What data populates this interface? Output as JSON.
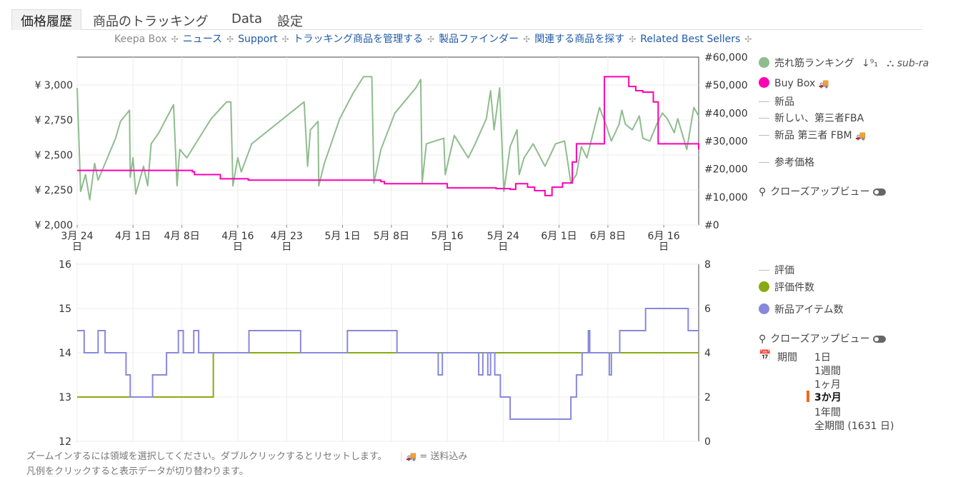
{
  "tabs": [
    "価格履歴",
    "商品のトラッキング",
    "Data",
    "設定"
  ],
  "links": [
    "ニュース",
    "Support",
    "トラッキング商品を管理する",
    "製品ファインダー",
    "関連する商品を探す",
    "Related Best Sellers"
  ],
  "links_prefix": "Keepa Box",
  "link_separator": "✣",
  "top_legend": {
    "sales_rank": "売れ筋ランキング",
    "sort_icon": "↓⁹₁",
    "sub_rank": "sub-ra",
    "buy_box": "Buy Box",
    "new": "新品",
    "new_3p_fba": "新しい、第三者FBA",
    "new_3p_fbm": "新品 第三者 FBM",
    "list_price": "参考価格",
    "closeup": "クローズアップビュー",
    "truck_icon": "🚚"
  },
  "bottom_legend": {
    "rating": "評価",
    "review_count": "評価件数",
    "new_offer_count": "新品アイテム数",
    "closeup": "クローズアップビュー",
    "period_label": "期間",
    "period_options": [
      "1日",
      "1週間",
      "1ヶ月",
      "3か月",
      "1年間",
      "全期間 (1631 日)"
    ],
    "period_selected": "3か月"
  },
  "footnotes": {
    "line1": "ズームインするには領域を選択してください。ダブルクリックするとリセットします。",
    "shipping_note": "= 送料込み",
    "line2": "凡例をクリックすると表示データが切り替わります。"
  },
  "colors": {
    "sales_rank": "#8fbc8f",
    "buy_box": "#ff00b4",
    "rating_count": "#88aa11",
    "new_offer_count": "#8888dd",
    "accent": "#f26a1b",
    "link": "#1f5aa5"
  },
  "chart_data": [
    {
      "type": "line",
      "x_tick_labels": [
        "3月 24 日",
        "4月 1日",
        "4月 8日",
        "4月 16 日",
        "4月 23 日",
        "5月 1日",
        "5月 8日",
        "5月 16 日",
        "5月 24 日",
        "6月 1日",
        "6月 8日",
        "6月 16 日"
      ],
      "y_left": {
        "tick_labels": [
          "¥ 2,000",
          "¥ 2,250",
          "¥ 2,500",
          "¥ 2,750",
          "¥ 3,000"
        ],
        "range": [
          2000,
          3200
        ]
      },
      "y_right": {
        "tick_labels": [
          "#0",
          "#10,000",
          "#20,000",
          "#30,000",
          "#40,000",
          "#50,000",
          "#60,000"
        ],
        "range": [
          0,
          60000
        ]
      },
      "x_range_days": [
        0,
        89
      ],
      "series": [
        {
          "name": "売れ筋ランキング",
          "axis": "right",
          "points": [
            [
              0,
              49000
            ],
            [
              0.5,
              12000
            ],
            [
              1.2,
              18000
            ],
            [
              1.8,
              9000
            ],
            [
              2.5,
              22000
            ],
            [
              3,
              16000
            ],
            [
              5.5,
              31000
            ],
            [
              6.2,
              37000
            ],
            [
              7.5,
              41000
            ],
            [
              7.6,
              17000
            ],
            [
              8,
              24000
            ],
            [
              8.4,
              11000
            ],
            [
              9.5,
              21000
            ],
            [
              10.1,
              14000
            ],
            [
              10.6,
              29000
            ],
            [
              11.7,
              33000
            ],
            [
              13.8,
              43000
            ],
            [
              14.3,
              14000
            ],
            [
              14.7,
              27000
            ],
            [
              15.7,
              24000
            ],
            [
              17.2,
              30000
            ],
            [
              19.2,
              38000
            ],
            [
              21.4,
              44000
            ],
            [
              22,
              44000
            ],
            [
              22.3,
              14000
            ],
            [
              23,
              24000
            ],
            [
              23.5,
              19000
            ],
            [
              25,
              29000
            ],
            [
              28,
              35000
            ],
            [
              32.5,
              44000
            ],
            [
              33,
              21000
            ],
            [
              33.4,
              34000
            ],
            [
              34.5,
              37000
            ],
            [
              34.6,
              14000
            ],
            [
              35.4,
              22000
            ],
            [
              37.6,
              38000
            ],
            [
              39.5,
              47000
            ],
            [
              41,
              53000
            ],
            [
              42.2,
              53000
            ],
            [
              42.5,
              15000
            ],
            [
              43.5,
              27000
            ],
            [
              45.5,
              40000
            ],
            [
              48.5,
              49000
            ],
            [
              49.2,
              52000
            ],
            [
              49.4,
              15000
            ],
            [
              50,
              29000
            ],
            [
              52.5,
              31000
            ],
            [
              52.7,
              18000
            ],
            [
              54,
              32000
            ],
            [
              56,
              24000
            ],
            [
              57,
              29000
            ],
            [
              58.6,
              38000
            ],
            [
              59.2,
              48000
            ],
            [
              59.7,
              34000
            ],
            [
              60.5,
              49000
            ],
            [
              61.1,
              12000
            ],
            [
              62,
              28000
            ],
            [
              63,
              34000
            ],
            [
              63.3,
              18000
            ],
            [
              64,
              24000
            ],
            [
              65.3,
              29000
            ],
            [
              67,
              21000
            ],
            [
              68.5,
              29000
            ],
            [
              69.8,
              30000
            ],
            [
              70.7,
              15000
            ],
            [
              71.5,
              18000
            ],
            [
              72.2,
              28000
            ],
            [
              73,
              24000
            ],
            [
              74.2,
              36000
            ],
            [
              74.8,
              42000
            ],
            [
              75.7,
              36000
            ],
            [
              76.5,
              30000
            ],
            [
              77.6,
              36000
            ],
            [
              78,
              41000
            ],
            [
              78.5,
              36000
            ],
            [
              79.5,
              34000
            ],
            [
              80.5,
              39000
            ],
            [
              81,
              31000
            ],
            [
              82,
              30000
            ],
            [
              83,
              36000
            ],
            [
              83.8,
              40000
            ],
            [
              84.5,
              38000
            ],
            [
              85.5,
              33000
            ],
            [
              86,
              38000
            ],
            [
              87.3,
              27000
            ],
            [
              88.3,
              42000
            ],
            [
              89,
              39000
            ]
          ]
        },
        {
          "name": "Buy Box",
          "axis": "left",
          "points": [
            [
              0,
              2390
            ],
            [
              7.5,
              2390
            ],
            [
              10.5,
              2390
            ],
            [
              16.5,
              2380
            ],
            [
              16.8,
              2360
            ],
            [
              20.5,
              2330
            ],
            [
              23.5,
              2330
            ],
            [
              24.5,
              2320
            ],
            [
              38,
              2320
            ],
            [
              40,
              2320
            ],
            [
              43.5,
              2310
            ],
            [
              44,
              2295
            ],
            [
              51,
              2295
            ],
            [
              53,
              2265
            ],
            [
              58,
              2265
            ],
            [
              60,
              2260
            ],
            [
              62,
              2255
            ],
            [
              62.8,
              2295
            ],
            [
              64.5,
              2270
            ],
            [
              65.5,
              2245
            ],
            [
              67,
              2210
            ],
            [
              68,
              2270
            ],
            [
              69.5,
              2300
            ],
            [
              70.5,
              2300
            ],
            [
              70.9,
              2450
            ],
            [
              71.5,
              2580
            ],
            [
              72,
              2580
            ],
            [
              73.5,
              2580
            ],
            [
              73.8,
              2580
            ],
            [
              75.5,
              3060
            ],
            [
              78,
              3060
            ],
            [
              79,
              2990
            ],
            [
              80,
              2960
            ],
            [
              81,
              2950
            ],
            [
              82.5,
              2880
            ],
            [
              83,
              2880
            ],
            [
              83.2,
              2580
            ],
            [
              90,
              2580
            ],
            [
              92,
              2560
            ],
            [
              94.5,
              2560
            ],
            [
              95,
              2540
            ],
            [
              96,
              2540
            ]
          ]
        }
      ]
    },
    {
      "type": "line",
      "x_range_days": [
        0,
        89
      ],
      "y_left": {
        "tick_labels": [
          "12",
          "13",
          "14",
          "15",
          "16"
        ],
        "range": [
          12,
          16
        ]
      },
      "y_right": {
        "tick_labels": [
          "0",
          "2",
          "4",
          "6",
          "8"
        ],
        "range": [
          0,
          8
        ]
      },
      "series": [
        {
          "name": "評価件数",
          "axis": "left",
          "points": [
            [
              0,
              13
            ],
            [
              19.5,
              13
            ],
            [
              19.5,
              14
            ],
            [
              89,
              14
            ]
          ]
        },
        {
          "name": "新品アイテム数",
          "axis": "right",
          "points": [
            [
              0,
              5
            ],
            [
              1,
              5
            ],
            [
              1,
              4
            ],
            [
              3,
              4
            ],
            [
              3,
              5
            ],
            [
              4,
              5
            ],
            [
              4,
              4
            ],
            [
              7,
              4
            ],
            [
              7,
              3
            ],
            [
              7.6,
              3
            ],
            [
              7.6,
              2
            ],
            [
              10.8,
              2
            ],
            [
              10.8,
              3
            ],
            [
              12.8,
              3
            ],
            [
              12.8,
              4
            ],
            [
              14.5,
              4
            ],
            [
              14.5,
              5
            ],
            [
              15.2,
              5
            ],
            [
              15.2,
              4
            ],
            [
              16.7,
              4
            ],
            [
              16.7,
              5
            ],
            [
              17.4,
              5
            ],
            [
              17.4,
              4
            ],
            [
              24.6,
              4
            ],
            [
              24.6,
              5
            ],
            [
              32,
              5
            ],
            [
              32,
              4
            ],
            [
              38.7,
              4
            ],
            [
              38.7,
              5
            ],
            [
              45.8,
              5
            ],
            [
              45.8,
              4
            ],
            [
              51.7,
              4
            ],
            [
              51.7,
              3
            ],
            [
              52.3,
              3
            ],
            [
              52.3,
              4
            ],
            [
              57.5,
              4
            ],
            [
              57.5,
              3
            ],
            [
              58.1,
              3
            ],
            [
              58.1,
              4
            ],
            [
              58.8,
              4
            ],
            [
              58.8,
              3
            ],
            [
              59.2,
              3
            ],
            [
              59.2,
              4
            ],
            [
              59.8,
              4
            ],
            [
              59.8,
              3
            ],
            [
              60.6,
              3
            ],
            [
              60.6,
              2
            ],
            [
              62,
              2
            ],
            [
              62,
              1
            ],
            [
              63,
              1
            ],
            [
              63,
              1
            ],
            [
              67,
              1
            ],
            [
              67,
              1
            ],
            [
              70.7,
              1
            ],
            [
              70.7,
              2
            ],
            [
              71.5,
              2
            ],
            [
              71.5,
              3
            ],
            [
              72.3,
              3
            ],
            [
              72.3,
              4
            ],
            [
              73.2,
              4
            ],
            [
              73.2,
              5
            ],
            [
              73.4,
              5
            ],
            [
              73.4,
              4
            ],
            [
              76.2,
              4
            ],
            [
              76.2,
              3
            ],
            [
              76.5,
              3
            ],
            [
              76.5,
              4
            ],
            [
              77.7,
              4
            ],
            [
              77.7,
              5
            ],
            [
              81.4,
              5
            ],
            [
              81.4,
              6
            ],
            [
              87.5,
              6
            ],
            [
              87.5,
              5
            ],
            [
              89,
              5
            ]
          ]
        }
      ]
    }
  ]
}
